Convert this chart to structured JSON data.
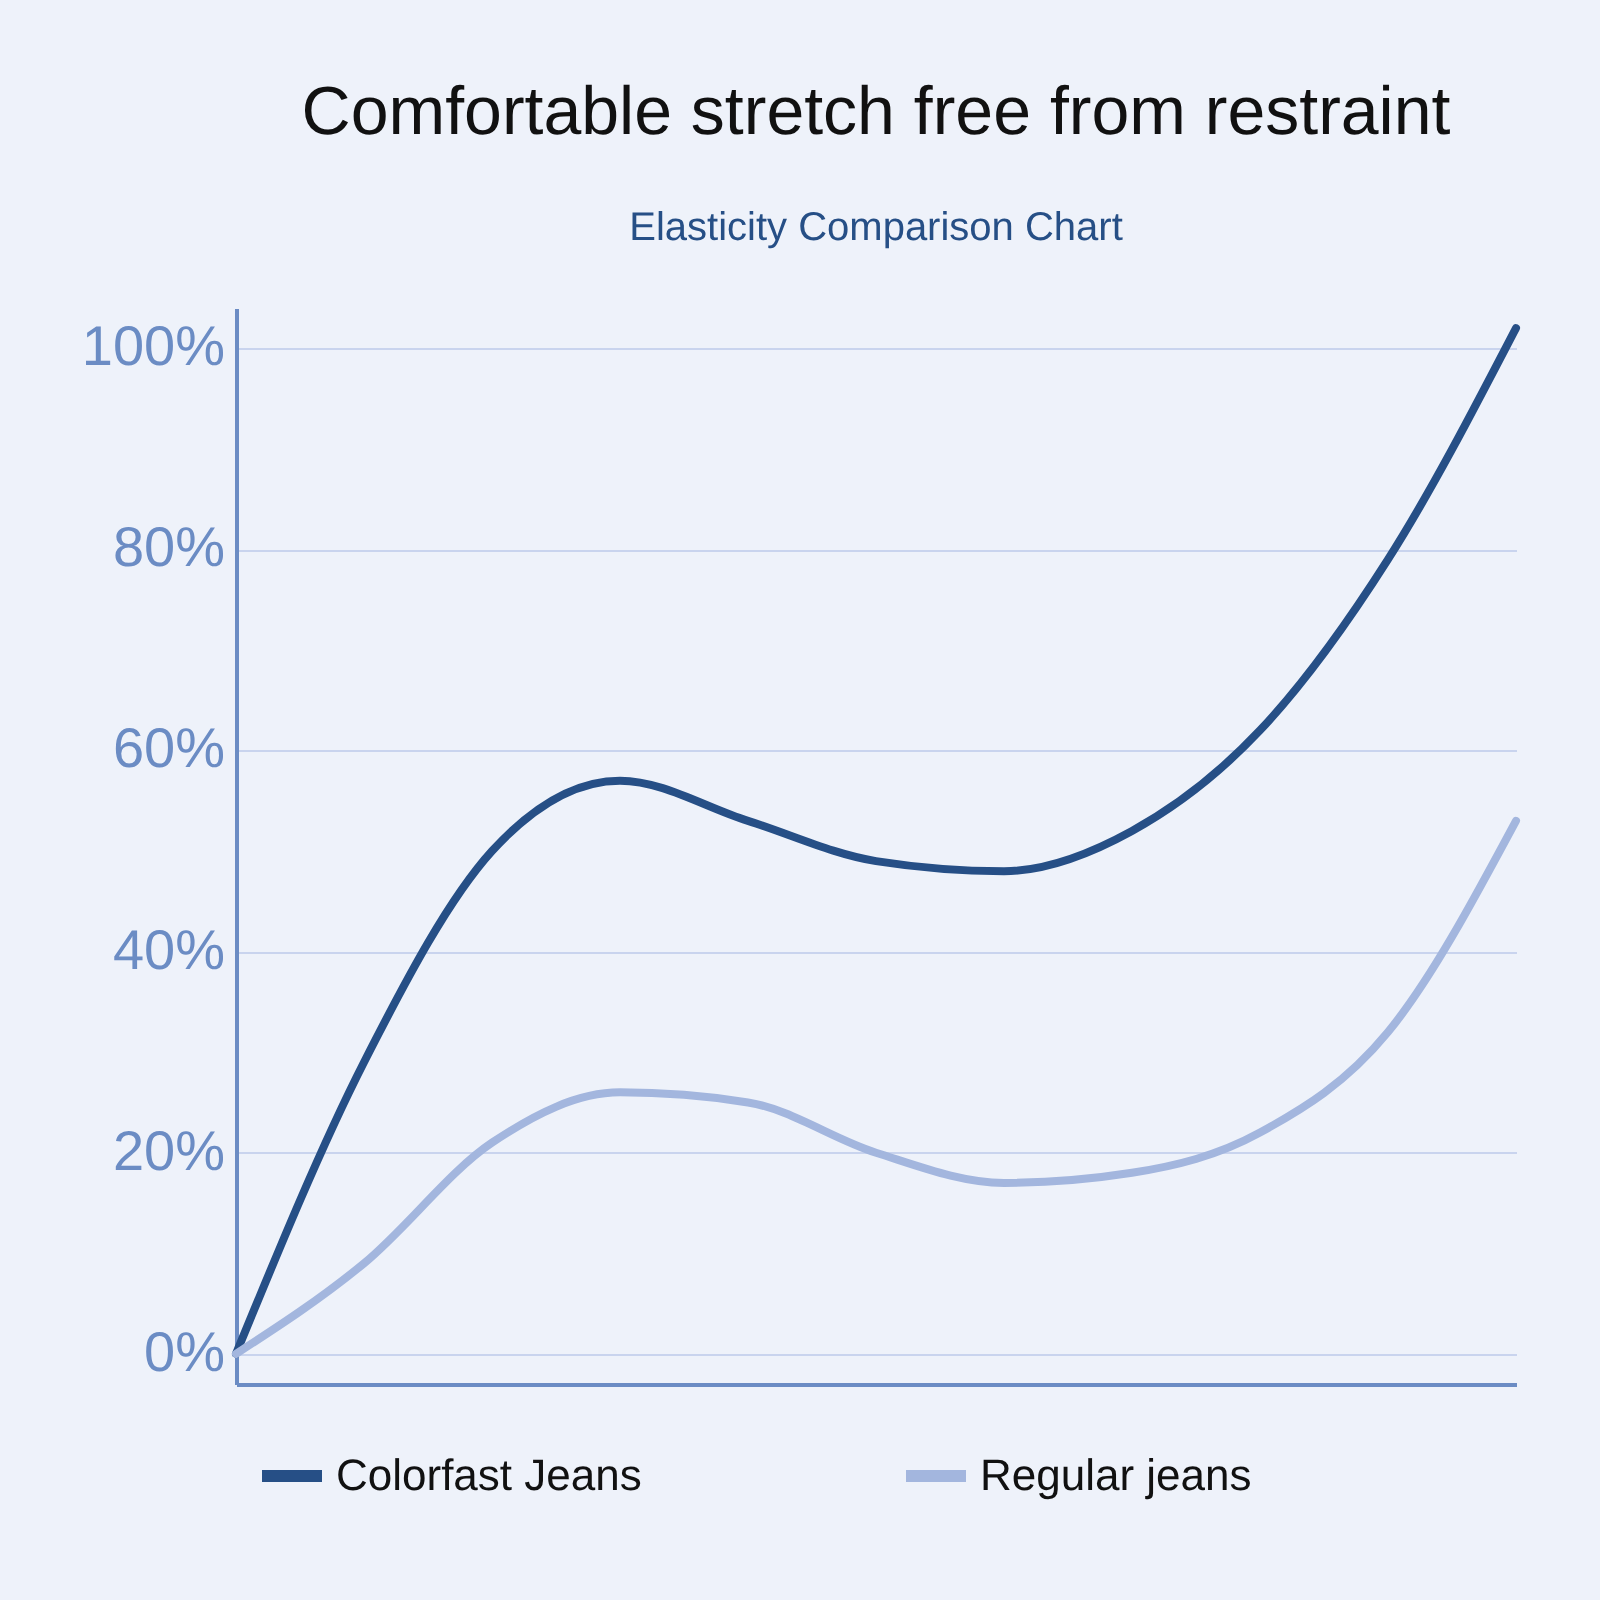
{
  "chart_data": {
    "type": "line",
    "title": "Comfortable stretch free from restraint",
    "subtitle": "Elasticity Comparison Chart",
    "categories": [
      null,
      null,
      null,
      null,
      null,
      null,
      null,
      null,
      null,
      null,
      null
    ],
    "series": [
      {
        "name": "Colorfast Jeans",
        "color": "#264f86",
        "values": [
          0,
          29,
          50,
          57,
          53,
          49,
          48,
          52,
          62,
          79,
          102
        ]
      },
      {
        "name": "Regular jeans",
        "color": "#a3b6de",
        "values": [
          0,
          9,
          21,
          26,
          25,
          20,
          17,
          18,
          22,
          32,
          53
        ]
      }
    ],
    "ylim": [
      -3,
      104
    ],
    "yticks": [
      {
        "value": 0,
        "label": "0%"
      },
      {
        "value": 20,
        "label": "20%"
      },
      {
        "value": 40,
        "label": "40%"
      },
      {
        "value": 60,
        "label": "60%"
      },
      {
        "value": 80,
        "label": "80%"
      },
      {
        "value": 100,
        "label": "100%"
      }
    ],
    "grid": "y",
    "legend": "bottom",
    "tick_labels": "y",
    "marker": "none",
    "line_style": "solid"
  }
}
